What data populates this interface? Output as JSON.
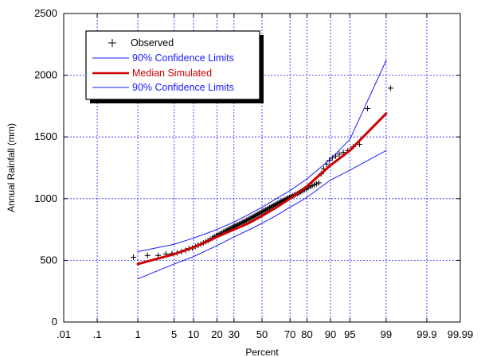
{
  "chart_data": {
    "type": "line",
    "title": "",
    "xlabel": "Percent",
    "ylabel": "Annual Rainfall (mm)",
    "x_scale": "normal-probability",
    "x_ticks": [
      ".01",
      ".1",
      "1",
      "5",
      "10",
      "20",
      "30",
      "50",
      "70",
      "80",
      "90",
      "95",
      "99",
      "99.9",
      "99.99"
    ],
    "x_tick_values": [
      0.01,
      0.1,
      1,
      5,
      10,
      20,
      30,
      50,
      70,
      80,
      90,
      95,
      99,
      99.9,
      99.99
    ],
    "xlim": [
      0.01,
      99.99
    ],
    "y_ticks": [
      "0",
      "500",
      "1000",
      "1500",
      "2000",
      "2500"
    ],
    "ylim": [
      0,
      2500
    ],
    "grid": true,
    "legend_position": "top-left",
    "legend": [
      {
        "label": "Observed",
        "style": "marker",
        "color": "#000000"
      },
      {
        "label": "90% Confidence Limits",
        "style": "line",
        "color": "#1a1aff"
      },
      {
        "label": "Median Simulated",
        "style": "line",
        "color": "#cc0000"
      },
      {
        "label": "90% Confidence Limits",
        "style": "line",
        "color": "#1a1aff"
      }
    ],
    "series": [
      {
        "kind": "observed",
        "color": "#000000",
        "points": [
          [
            0.8,
            525
          ],
          [
            1.6,
            540
          ],
          [
            2.6,
            540
          ],
          [
            3.6,
            552
          ],
          [
            4.6,
            556
          ],
          [
            5.6,
            560
          ],
          [
            6.6,
            570
          ],
          [
            7.6,
            580
          ],
          [
            8.6,
            595
          ],
          [
            9.6,
            600
          ],
          [
            10.6,
            612
          ],
          [
            11.6,
            622
          ],
          [
            12.6,
            630
          ],
          [
            13.6,
            640
          ],
          [
            14.6,
            650
          ],
          [
            15.6,
            660
          ],
          [
            16.6,
            670
          ],
          [
            17.6,
            680
          ],
          [
            18.6,
            692
          ],
          [
            19.6,
            700
          ],
          [
            20.6,
            708
          ],
          [
            21.6,
            715
          ],
          [
            22.6,
            722
          ],
          [
            23.6,
            730
          ],
          [
            24.6,
            738
          ],
          [
            25.6,
            745
          ],
          [
            26.6,
            752
          ],
          [
            27.6,
            758
          ],
          [
            28.6,
            765
          ],
          [
            29.6,
            772
          ],
          [
            30.6,
            778
          ],
          [
            31.6,
            784
          ],
          [
            32.6,
            790
          ],
          [
            33.6,
            795
          ],
          [
            34.6,
            800
          ],
          [
            35.6,
            806
          ],
          [
            36.6,
            812
          ],
          [
            37.6,
            818
          ],
          [
            38.6,
            824
          ],
          [
            39.6,
            830
          ],
          [
            40.6,
            836
          ],
          [
            41.6,
            842
          ],
          [
            42.6,
            848
          ],
          [
            43.6,
            854
          ],
          [
            44.6,
            860
          ],
          [
            45.6,
            866
          ],
          [
            46.6,
            872
          ],
          [
            47.6,
            878
          ],
          [
            48.6,
            884
          ],
          [
            49.6,
            890
          ],
          [
            50.6,
            896
          ],
          [
            51.6,
            902
          ],
          [
            52.6,
            908
          ],
          [
            53.6,
            914
          ],
          [
            54.6,
            920
          ],
          [
            55.6,
            926
          ],
          [
            56.6,
            932
          ],
          [
            57.6,
            938
          ],
          [
            58.6,
            944
          ],
          [
            59.6,
            950
          ],
          [
            60.6,
            956
          ],
          [
            61.6,
            962
          ],
          [
            62.6,
            968
          ],
          [
            63.6,
            974
          ],
          [
            64.6,
            980
          ],
          [
            65.6,
            986
          ],
          [
            66.6,
            992
          ],
          [
            67.6,
            998
          ],
          [
            68.6,
            1004
          ],
          [
            69.6,
            1010
          ],
          [
            70.6,
            1016
          ],
          [
            71.6,
            1022
          ],
          [
            72.6,
            1028
          ],
          [
            73.6,
            1034
          ],
          [
            74.6,
            1040
          ],
          [
            75.6,
            1048
          ],
          [
            76.6,
            1056
          ],
          [
            77.6,
            1064
          ],
          [
            78.6,
            1072
          ],
          [
            79.6,
            1080
          ],
          [
            80.6,
            1088
          ],
          [
            81.6,
            1096
          ],
          [
            82.6,
            1104
          ],
          [
            83.6,
            1112
          ],
          [
            84.6,
            1120
          ],
          [
            85.6,
            1128
          ],
          [
            86.6,
            1200
          ],
          [
            87.6,
            1240
          ],
          [
            88.6,
            1280
          ],
          [
            89.6,
            1310
          ],
          [
            90.6,
            1330
          ],
          [
            91.6,
            1345
          ],
          [
            92.6,
            1360
          ],
          [
            93.6,
            1375
          ],
          [
            94.6,
            1390
          ],
          [
            95.6,
            1420
          ],
          [
            96.6,
            1440
          ],
          [
            97.6,
            1730
          ],
          [
            99.2,
            1895
          ]
        ]
      },
      {
        "kind": "upper-confidence",
        "color": "#1a1aff",
        "points": [
          [
            1,
            570
          ],
          [
            5,
            630
          ],
          [
            10,
            680
          ],
          [
            20,
            750
          ],
          [
            30,
            810
          ],
          [
            40,
            870
          ],
          [
            50,
            930
          ],
          [
            60,
            995
          ],
          [
            70,
            1065
          ],
          [
            80,
            1160
          ],
          [
            90,
            1320
          ],
          [
            95,
            1480
          ],
          [
            99,
            2120
          ]
        ]
      },
      {
        "kind": "median",
        "color": "#cc0000",
        "points": [
          [
            1,
            470
          ],
          [
            5,
            550
          ],
          [
            10,
            605
          ],
          [
            20,
            690
          ],
          [
            30,
            750
          ],
          [
            40,
            800
          ],
          [
            50,
            860
          ],
          [
            60,
            925
          ],
          [
            70,
            1000
          ],
          [
            80,
            1100
          ],
          [
            90,
            1270
          ],
          [
            95,
            1390
          ],
          [
            99,
            1690
          ]
        ]
      },
      {
        "kind": "lower-confidence",
        "color": "#1a1aff",
        "points": [
          [
            1,
            350
          ],
          [
            5,
            470
          ],
          [
            10,
            530
          ],
          [
            20,
            620
          ],
          [
            30,
            690
          ],
          [
            40,
            745
          ],
          [
            50,
            800
          ],
          [
            60,
            860
          ],
          [
            70,
            930
          ],
          [
            80,
            1010
          ],
          [
            90,
            1150
          ],
          [
            95,
            1230
          ],
          [
            99,
            1390
          ]
        ]
      }
    ]
  }
}
